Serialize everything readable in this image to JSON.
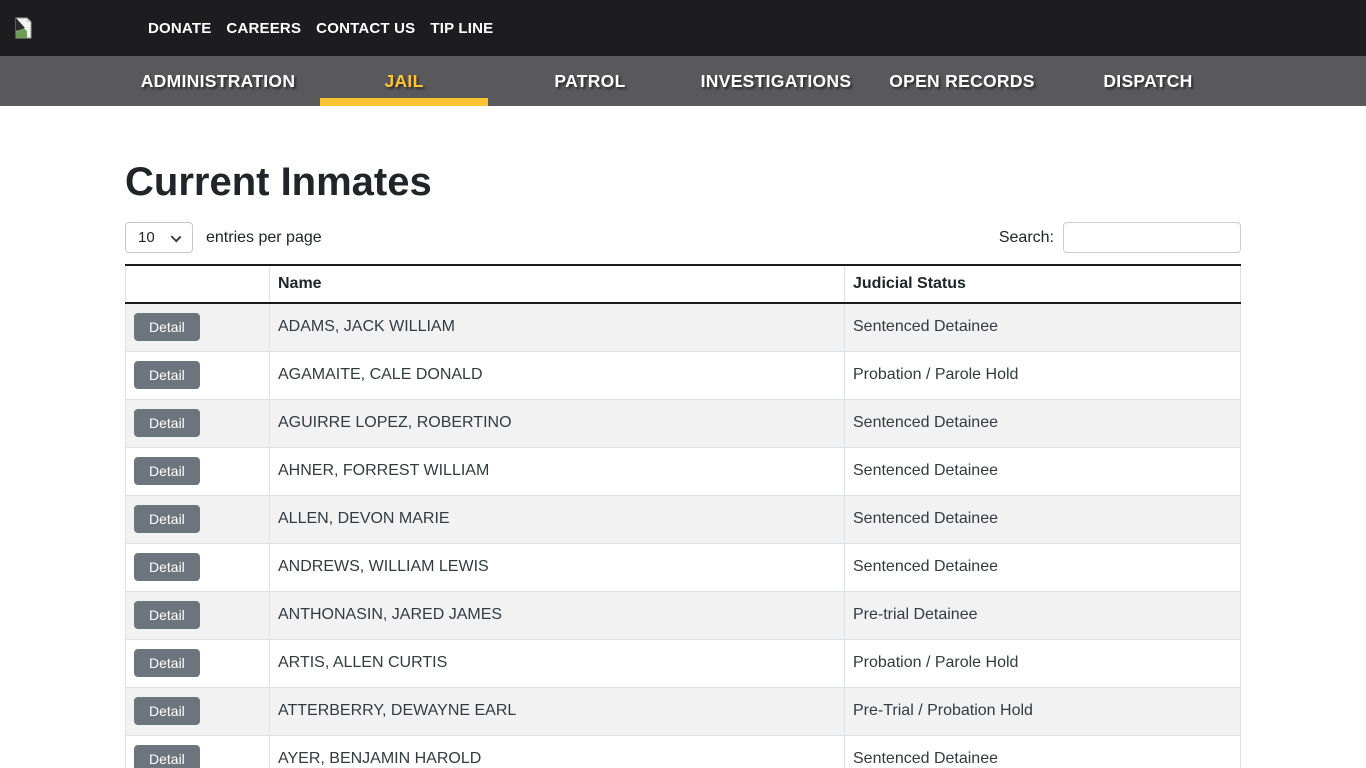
{
  "topbar": {
    "links": [
      "DONATE",
      "CAREERS",
      "CONTACT US",
      "TIP LINE"
    ]
  },
  "nav": {
    "items": [
      {
        "label": "ADMINISTRATION",
        "active": false
      },
      {
        "label": "JAIL",
        "active": true
      },
      {
        "label": "PATROL",
        "active": false
      },
      {
        "label": "INVESTIGATIONS",
        "active": false
      },
      {
        "label": "OPEN RECORDS",
        "active": false
      },
      {
        "label": "DISPATCH",
        "active": false
      }
    ]
  },
  "page": {
    "title": "Current Inmates",
    "entries_per_page": {
      "selected": "10",
      "label": "entries per page"
    },
    "search": {
      "label": "Search:",
      "value": ""
    }
  },
  "table": {
    "headers": [
      "",
      "Name",
      "Judicial Status"
    ],
    "detail_button_label": "Detail",
    "rows": [
      {
        "name": "ADAMS, JACK WILLIAM",
        "status": "Sentenced Detainee"
      },
      {
        "name": "AGAMAITE, CALE DONALD",
        "status": "Probation / Parole Hold"
      },
      {
        "name": "AGUIRRE LOPEZ, ROBERTINO",
        "status": "Sentenced Detainee"
      },
      {
        "name": "AHNER, FORREST WILLIAM",
        "status": "Sentenced Detainee"
      },
      {
        "name": "ALLEN, DEVON MARIE",
        "status": "Sentenced Detainee"
      },
      {
        "name": "ANDREWS, WILLIAM LEWIS",
        "status": "Sentenced Detainee"
      },
      {
        "name": "ANTHONASIN, JARED JAMES",
        "status": "Pre-trial Detainee"
      },
      {
        "name": "ARTIS, ALLEN CURTIS",
        "status": "Probation / Parole Hold"
      },
      {
        "name": "ATTERBERRY, DEWAYNE EARL",
        "status": "Pre-Trial / Probation Hold"
      },
      {
        "name": "AYER, BENJAMIN HAROLD",
        "status": "Sentenced Detainee"
      }
    ]
  },
  "icons": {
    "logo": "broken-image-icon",
    "select_chevron": "chevron-down-icon"
  },
  "colors": {
    "topbar_bg": "#1d1d1f",
    "nav_bg": "#59595b",
    "accent_yellow": "#fcc433",
    "button_gray": "#6c757d",
    "table_border": "#dee2e6",
    "header_border": "#1b1b1b",
    "stripe_bg": "#f2f2f2",
    "text": "#212529"
  }
}
